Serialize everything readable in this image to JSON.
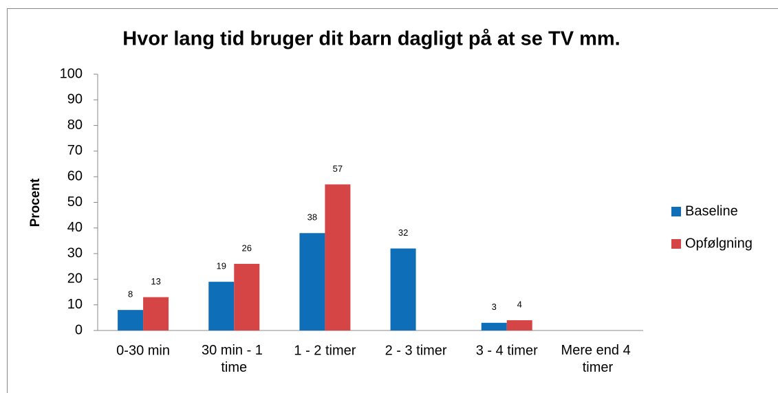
{
  "chart_data": {
    "type": "bar",
    "title": "Hvor lang tid bruger dit barn dagligt på at se TV mm.",
    "y_label": "Procent",
    "categories": [
      "0-30 min",
      "30 min - 1 time",
      "1 - 2 timer",
      "2 - 3 timer",
      "3 - 4 timer",
      "Mere end 4 timer"
    ],
    "series": [
      {
        "name": "Baseline",
        "color": "#0e6eb8",
        "values": [
          8,
          19,
          38,
          32,
          3,
          null
        ]
      },
      {
        "name": "Opfølgning",
        "color": "#d64545",
        "values": [
          13,
          26,
          57,
          null,
          4,
          null
        ]
      }
    ],
    "ylim": [
      0,
      100
    ],
    "yticks": [
      0,
      10,
      20,
      30,
      40,
      50,
      60,
      70,
      80,
      90,
      100
    ],
    "grid": false,
    "legend": "right"
  }
}
